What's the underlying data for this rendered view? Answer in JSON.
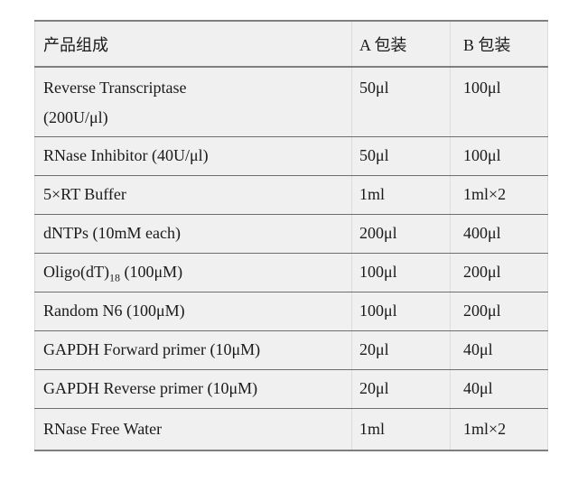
{
  "table": {
    "columns": [
      {
        "label": "产品组成"
      },
      {
        "label": "A 包装"
      },
      {
        "label": "B 包装"
      }
    ],
    "rows": [
      {
        "name_pre": "Reverse Transcriptase",
        "name_sub": "",
        "name_post": "",
        "name_line2": "(200U/μl)",
        "a": "50μl",
        "b": "100μl"
      },
      {
        "name_pre": "RNase Inhibitor (40U/μl)",
        "name_sub": "",
        "name_post": "",
        "a": "50μl",
        "b": "100μl"
      },
      {
        "name_pre": "5×RT Buffer",
        "name_sub": "",
        "name_post": "",
        "a": "1ml",
        "b": "1ml×2"
      },
      {
        "name_pre": "dNTPs (10mM each)",
        "name_sub": "",
        "name_post": "",
        "a": "200μl",
        "b": "400μl"
      },
      {
        "name_pre": "Oligo(dT)",
        "name_sub": "18",
        "name_post": " (100μM)",
        "a": "100μl",
        "b": "200μl"
      },
      {
        "name_pre": "Random N6 (100μM)",
        "name_sub": "",
        "name_post": "",
        "a": "100μl",
        "b": "200μl"
      },
      {
        "name_pre": "GAPDH Forward primer (10μM)",
        "name_sub": "",
        "name_post": "",
        "a": "20μl",
        "b": "40μl"
      },
      {
        "name_pre": "GAPDH Reverse primer (10μM)",
        "name_sub": "",
        "name_post": "",
        "a": "20μl",
        "b": "40μl"
      },
      {
        "name_pre": "RNase Free Water",
        "name_sub": "",
        "name_post": "",
        "a": "1ml",
        "b": "1ml×2"
      }
    ],
    "colors": {
      "page_bg": "#ffffff",
      "cell_bg": "#f0f0f0",
      "border_heavy": "#7f7f7f",
      "border_thin": "#6e6e6e",
      "border_vertical": "#dcdcdc",
      "text": "#1a1a1a"
    }
  }
}
